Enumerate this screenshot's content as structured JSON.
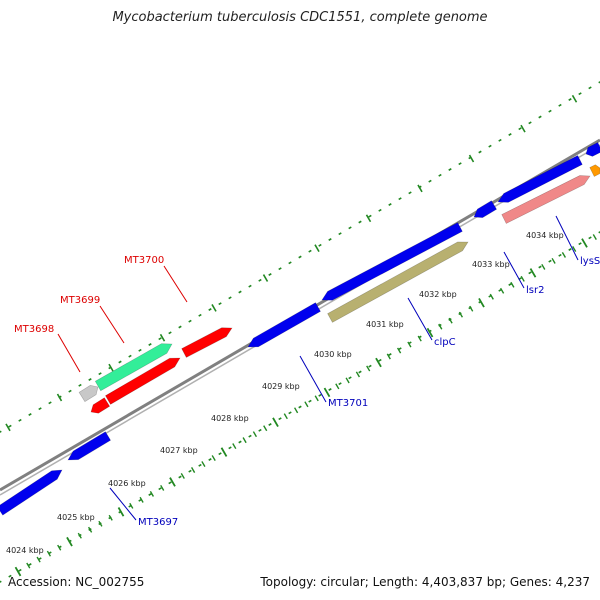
{
  "title": "Mycobacterium tuberculosis CDC1551, complete genome",
  "footer": {
    "accession": "Accession: NC_002755",
    "info": "Topology: circular; Length: 4,403,837 bp; Genes: 4,237"
  },
  "colors": {
    "blue": "#0000ee",
    "red": "#ff0000",
    "green": "#33ee99",
    "grey": "#c8c8c8",
    "olive": "#b8b070",
    "pink": "#f08888",
    "orange": "#ff9900",
    "backbone": "#808080",
    "tick": "#228822",
    "label_red": "#dd0000",
    "label_blue": "#0000bb"
  },
  "ruler_labels": [
    "4024 kbp",
    "4025 kbp",
    "4026 kbp",
    "4027 kbp",
    "4028 kbp",
    "4029 kbp",
    "4030 kbp",
    "4031 kbp",
    "4032 kbp",
    "4033 kbp",
    "4034 kbp"
  ],
  "gene_labels": [
    {
      "text": "MT3698",
      "color": "red"
    },
    {
      "text": "MT3699",
      "color": "red"
    },
    {
      "text": "MT3700",
      "color": "red"
    },
    {
      "text": "MT3697",
      "color": "blue"
    },
    {
      "text": "MT3701",
      "color": "blue"
    },
    {
      "text": "clpC",
      "color": "blue"
    },
    {
      "text": "lsr2",
      "color": "blue"
    },
    {
      "text": "lysS",
      "color": "blue"
    }
  ]
}
